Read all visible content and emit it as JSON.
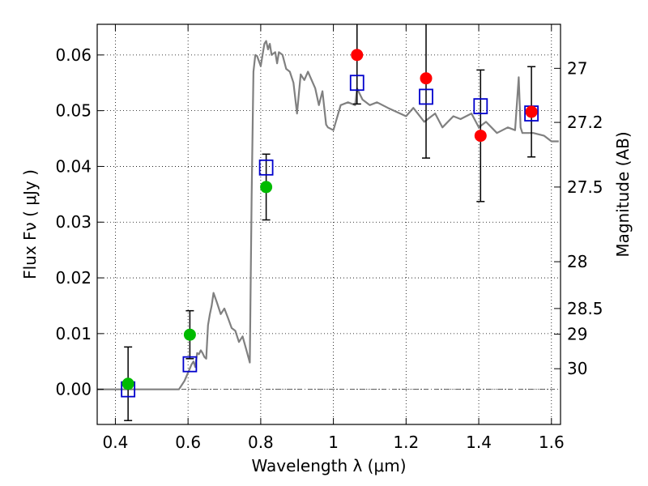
{
  "chart_data": {
    "type": "scatter",
    "xlabel": "Wavelength  λ (μm)",
    "ylabel": "Flux  Fν  ( μJy )",
    "y2label": "Magnitude (AB)",
    "xlim": [
      0.35,
      1.625
    ],
    "ylim": [
      -0.0063,
      0.0655
    ],
    "grid": true,
    "x_ticks": [
      {
        "v": 0.4,
        "label": "0.4"
      },
      {
        "v": 0.6,
        "label": "0.6"
      },
      {
        "v": 0.8,
        "label": "0.8"
      },
      {
        "v": 1.0,
        "label": "1"
      },
      {
        "v": 1.2,
        "label": "1.2"
      },
      {
        "v": 1.4,
        "label": "1.4"
      },
      {
        "v": 1.6,
        "label": "1.6"
      }
    ],
    "y_ticks": [
      {
        "v": 0.0,
        "label": "0.00"
      },
      {
        "v": 0.01,
        "label": "0.01"
      },
      {
        "v": 0.02,
        "label": "0.02"
      },
      {
        "v": 0.03,
        "label": "0.03"
      },
      {
        "v": 0.04,
        "label": "0.04"
      },
      {
        "v": 0.05,
        "label": "0.05"
      },
      {
        "v": 0.06,
        "label": "0.06"
      }
    ],
    "y2_ticks": [
      {
        "flux": 0.0576,
        "label": "27"
      },
      {
        "flux": 0.0479,
        "label": "27.2"
      },
      {
        "flux": 0.0363,
        "label": "27.5"
      },
      {
        "flux": 0.0229,
        "label": "28"
      },
      {
        "flux": 0.0145,
        "label": "28.5"
      },
      {
        "flux": 0.0099,
        "label": "29"
      },
      {
        "flux": 0.0037,
        "label": "30"
      }
    ],
    "colors": {
      "model": "#808080",
      "red": "#ff0000",
      "green": "#00bb00",
      "model_box": "#0000cc",
      "errorbar": "#000000"
    },
    "series": [
      {
        "name": "model spectrum",
        "kind": "line",
        "x": [
          0.35,
          0.575,
          0.59,
          0.6,
          0.61,
          0.615,
          0.62,
          0.625,
          0.63,
          0.635,
          0.64,
          0.645,
          0.65,
          0.655,
          0.66,
          0.665,
          0.67,
          0.68,
          0.69,
          0.7,
          0.71,
          0.72,
          0.73,
          0.74,
          0.75,
          0.76,
          0.77,
          0.775,
          0.78,
          0.785,
          0.79,
          0.8,
          0.81,
          0.815,
          0.82,
          0.825,
          0.83,
          0.84,
          0.845,
          0.85,
          0.86,
          0.87,
          0.88,
          0.89,
          0.9,
          0.91,
          0.92,
          0.93,
          0.94,
          0.95,
          0.96,
          0.97,
          0.98,
          0.985,
          1.0,
          1.02,
          1.04,
          1.06,
          1.065,
          1.08,
          1.1,
          1.12,
          1.15,
          1.2,
          1.22,
          1.25,
          1.28,
          1.3,
          1.33,
          1.35,
          1.38,
          1.4,
          1.42,
          1.45,
          1.48,
          1.5,
          1.51,
          1.515,
          1.52,
          1.55,
          1.58,
          1.6,
          1.62
        ],
        "y": [
          0.0,
          0.0,
          0.0015,
          0.003,
          0.0045,
          0.005,
          0.004,
          0.0065,
          0.0063,
          0.007,
          0.0065,
          0.0058,
          0.0055,
          0.0115,
          0.0135,
          0.015,
          0.0173,
          0.0155,
          0.0135,
          0.0145,
          0.0128,
          0.011,
          0.0105,
          0.0085,
          0.0095,
          0.0072,
          0.0048,
          0.035,
          0.057,
          0.06,
          0.0598,
          0.058,
          0.062,
          0.0625,
          0.061,
          0.062,
          0.06,
          0.0605,
          0.0585,
          0.0605,
          0.06,
          0.0575,
          0.057,
          0.055,
          0.0495,
          0.0565,
          0.0555,
          0.057,
          0.0555,
          0.054,
          0.051,
          0.0535,
          0.0475,
          0.047,
          0.0465,
          0.051,
          0.0515,
          0.051,
          0.054,
          0.052,
          0.051,
          0.0515,
          0.0505,
          0.049,
          0.0505,
          0.048,
          0.0495,
          0.047,
          0.049,
          0.0485,
          0.0495,
          0.047,
          0.048,
          0.046,
          0.047,
          0.0465,
          0.056,
          0.047,
          0.046,
          0.046,
          0.0455,
          0.0445,
          0.0445
        ]
      },
      {
        "name": "model box photometry",
        "kind": "open_squares",
        "x": [
          0.435,
          0.605,
          0.815,
          1.065,
          1.255,
          1.405,
          1.545
        ],
        "y": [
          0.0,
          0.0045,
          0.0398,
          0.055,
          0.0525,
          0.0508,
          0.0495
        ]
      },
      {
        "name": "observed (green)",
        "kind": "filled_circles",
        "x": [
          0.435,
          0.605,
          0.815
        ],
        "y": [
          0.001,
          0.0098,
          0.0363
        ],
        "err": [
          0.0066,
          0.0043,
          0.0059
        ]
      },
      {
        "name": "observed (red)",
        "kind": "filled_circles",
        "x": [
          1.065,
          1.255,
          1.405,
          1.545
        ],
        "y": [
          0.06,
          0.0558,
          0.0455,
          0.0498
        ],
        "err": [
          0.0088,
          0.0143,
          0.0118,
          0.0081
        ]
      }
    ]
  }
}
